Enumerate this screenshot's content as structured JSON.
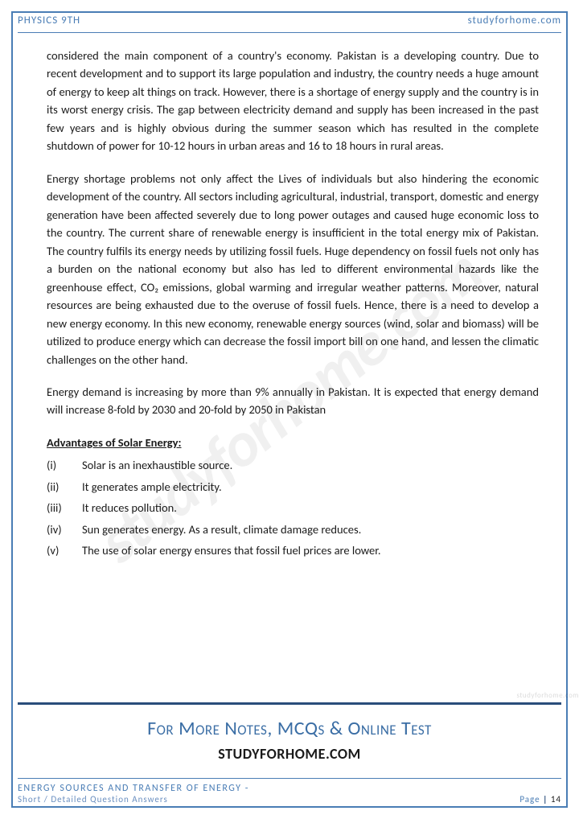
{
  "colors": {
    "border": "#4a7db5",
    "text": "#1a1a1a",
    "accent": "#3b6ea5",
    "rule_thick": "#2a4d7a",
    "muted": "#6a8fc0"
  },
  "typography": {
    "body_fontsize": 14.5,
    "body_lineheight": 1.55,
    "header_fontsize": 13,
    "promo1_fontsize": 24,
    "promo2_fontsize": 18,
    "footer_fontsize": 11,
    "watermark_fontsize": 78
  },
  "header": {
    "left": "PHYSICS 9TH",
    "right": "studyforhome.com"
  },
  "watermark": "studyforhome.com",
  "side_watermark": "studyforhome.com",
  "body": {
    "para1": "considered the main component of a country's economy. Pakistan is a developing country. Due to recent development and to support its large population and industry, the country needs a huge amount of energy to keep alt things on track. However, there is a shortage of energy supply and the country is in its worst energy crisis. The gap between electricity demand and supply has been increased in the past few years and is highly obvious during the summer season which has resulted in the complete shutdown of power for 10-12 hours in urban areas and 16 to 18 hours in rural areas.",
    "para2": "Energy shortage problems not only affect the Lives of individuals but also hindering the economic development of the country. All sectors including agricultural, industrial, transport, domestic and energy generation have been affected severely due to long power outages and caused huge economic loss to the country. The current share of renewable energy is insufficient in the total energy mix of Pakistan. The country fulfils its energy needs by utilizing fossil fuels. Huge dependency on fossil fuels not only has a burden on the national economy but also has led to different environmental hazards like the greenhouse effect, CO₂ emissions, global warming and irregular weather patterns. Moreover, natural resources are being exhausted due to the overuse of fossil fuels. Hence, there is a need to develop a new energy economy. In this new economy, renewable energy sources (wind, solar and biomass) will be utilized to produce energy which can decrease the fossil import bill on one hand, and lessen the climatic challenges on the other hand.",
    "para3": "Energy demand is increasing by more than 9% annually in Pakistan. It is expected that energy demand will increase 8-fold by 2030 and 20-fold by 2050 in Pakistan",
    "advantages_title": "Advantages of Solar Energy:",
    "advantages": [
      {
        "num": "(i)",
        "text": "Solar is an inexhaustible source."
      },
      {
        "num": "(ii)",
        "text": "It generates ample electricity."
      },
      {
        "num": "(iii)",
        "text": "It reduces pollution."
      },
      {
        "num": "(iv)",
        "text": "Sun generates energy. As a result, climate damage reduces."
      },
      {
        "num": "(v)",
        "text": "The use of solar energy ensures that fossil fuel prices are lower."
      }
    ]
  },
  "promo": {
    "line1": "For More Notes, MCQs & Online Test",
    "line2": "STUDYFORHOME.COM"
  },
  "footer": {
    "left_line1": "ENERGY SOURCES AND TRANSFER OF ENERGY -",
    "left_line2": "Short / Detailed Question Answers",
    "page_label": "Page",
    "page_num": "14"
  }
}
